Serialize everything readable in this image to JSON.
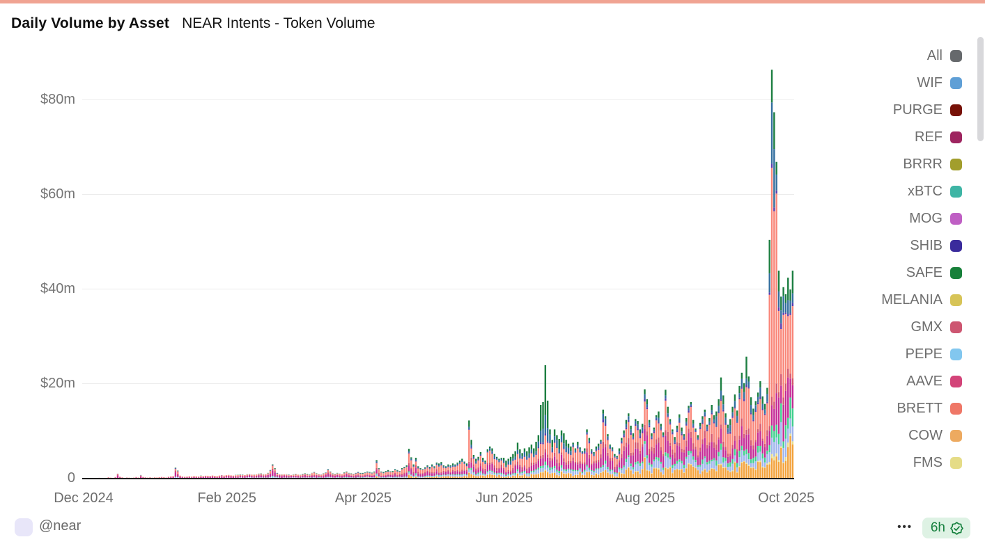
{
  "accent_color": "#f0a392",
  "header": {
    "title": "Daily Volume by Asset",
    "subtitle": "NEAR Intents - Token Volume"
  },
  "footer": {
    "handle": "@near",
    "menu_dots": "•••",
    "refresh_badge": "6h",
    "badge_bg": "#def2e4",
    "badge_green": "#15803d",
    "icons": [
      "ellipsis-menu-icon",
      "verified-seal-check-icon"
    ]
  },
  "legend": [
    {
      "label": "All",
      "color": "#66696c"
    },
    {
      "label": "WIF",
      "color": "#5f9fd6"
    },
    {
      "label": "PURGE",
      "color": "#771107"
    },
    {
      "label": "REF",
      "color": "#9e2560"
    },
    {
      "label": "BRRR",
      "color": "#a29e2c"
    },
    {
      "label": "xBTC",
      "color": "#3eb5a5"
    },
    {
      "label": "MOG",
      "color": "#bf5fc4"
    },
    {
      "label": "SHIB",
      "color": "#3a2b9c"
    },
    {
      "label": "SAFE",
      "color": "#17803a"
    },
    {
      "label": "MELANIA",
      "color": "#d7c457"
    },
    {
      "label": "GMX",
      "color": "#cd5671"
    },
    {
      "label": "PEPE",
      "color": "#82c7ef"
    },
    {
      "label": "AAVE",
      "color": "#d34479"
    },
    {
      "label": "BRETT",
      "color": "#ef7767"
    },
    {
      "label": "COW",
      "color": "#edaa60"
    },
    {
      "label": "FMS",
      "color": "#e5dc87"
    }
  ],
  "chart_data": {
    "type": "bar",
    "stacked": true,
    "title": "Daily Volume by Asset",
    "subtitle": "NEAR Intents - Token Volume",
    "unit": "USD millions per day",
    "grid": true,
    "legend_position": "right",
    "ylim": [
      0,
      88
    ],
    "y_ticks": [
      {
        "label": "$80m",
        "value": 80
      },
      {
        "label": "$60m",
        "value": 60
      },
      {
        "label": "$40m",
        "value": 40
      },
      {
        "label": "$20m",
        "value": 20
      },
      {
        "label": "0",
        "value": 0
      }
    ],
    "x_ticks": [
      {
        "label": "Dec 2024",
        "day_index": 0
      },
      {
        "label": "Feb 2025",
        "day_index": 62
      },
      {
        "label": "Apr 2025",
        "day_index": 121
      },
      {
        "label": "Jun 2025",
        "day_index": 182
      },
      {
        "label": "Aug 2025",
        "day_index": 243
      },
      {
        "label": "Oct 2025",
        "day_index": 304
      }
    ],
    "start_date": "2024-12-01",
    "months": [
      [
        "2024-12",
        31
      ],
      [
        "2025-01",
        31
      ],
      [
        "2025-02",
        28
      ],
      [
        "2025-03",
        31
      ],
      [
        "2025-04",
        30
      ],
      [
        "2025-05",
        31
      ],
      [
        "2025-06",
        30
      ],
      [
        "2025-07",
        31
      ],
      [
        "2025-08",
        31
      ],
      [
        "2025-09",
        30
      ],
      [
        "2025-10",
        31
      ]
    ],
    "series_order": [
      "COW",
      "FMS",
      "PEPE",
      "xBTC",
      "AAVE",
      "GMX",
      "BRETT",
      "SHIB",
      "WIF",
      "SAFE"
    ],
    "series_colors": {
      "COW": "#f3a23b",
      "FMS": "#e8de8d",
      "PEPE": "#9fb5ec",
      "xBTC": "#41cf8e",
      "AAVE": "#c52b96",
      "GMX": "#d5566e",
      "BRETT": "#f9877a",
      "SHIB": "#5a3cae",
      "WIF": "#336f9e",
      "SAFE": "#1d7f42"
    },
    "daily_totals_musd": [
      0.08,
      0.12,
      0.1,
      0.15,
      0.12,
      0.1,
      0.18,
      0.25,
      0.2,
      0.15,
      0.22,
      0.3,
      0.24,
      0.18,
      0.35,
      1.1,
      0.45,
      0.3,
      0.22,
      0.28,
      0.24,
      0.2,
      0.3,
      0.38,
      0.3,
      0.75,
      0.4,
      0.3,
      0.25,
      0.3,
      0.22,
      0.3,
      0.28,
      0.32,
      0.4,
      0.35,
      0.3,
      0.45,
      0.55,
      0.6,
      2.3,
      1.7,
      0.7,
      0.5,
      0.45,
      0.5,
      0.55,
      0.5,
      0.6,
      0.55,
      0.5,
      0.65,
      0.6,
      0.7,
      0.65,
      0.6,
      0.72,
      0.65,
      0.6,
      0.7,
      0.78,
      0.7,
      0.8,
      0.85,
      0.75,
      0.7,
      0.78,
      0.82,
      0.9,
      0.85,
      0.8,
      0.92,
      1.0,
      0.9,
      0.85,
      0.95,
      1.05,
      1.1,
      0.92,
      1.0,
      1.2,
      1.8,
      3.0,
      2.2,
      1.2,
      1.0,
      0.9,
      1.0,
      0.92,
      0.85,
      0.85,
      0.9,
      1.0,
      0.92,
      0.82,
      1.0,
      1.1,
      1.02,
      0.9,
      1.2,
      1.4,
      1.1,
      1.0,
      0.9,
      1.1,
      1.3,
      2.0,
      1.5,
      1.1,
      1.0,
      1.2,
      1.12,
      1.0,
      1.3,
      1.5,
      1.2,
      1.1,
      1.0,
      1.2,
      1.4,
      1.2,
      1.2,
      1.3,
      1.5,
      1.4,
      1.25,
      1.5,
      3.9,
      2.2,
      1.5,
      1.4,
      1.6,
      1.8,
      1.55,
      1.6,
      2.0,
      1.8,
      1.6,
      2.2,
      2.5,
      2.8,
      6.3,
      4.5,
      3.0,
      4.4,
      2.6,
      2.2,
      2.0,
      2.4,
      2.8,
      2.5,
      3.0,
      2.6,
      3.4,
      3.2,
      3.5,
      2.8,
      2.6,
      3.0,
      2.8,
      3.2,
      3.0,
      3.4,
      3.8,
      4.2,
      3.6,
      3.2,
      12.3,
      8.2,
      5.0,
      4.2,
      4.6,
      5.6,
      4.4,
      3.8,
      6.2,
      6.8,
      6.4,
      5.2,
      4.6,
      4.2,
      4.4,
      4.4,
      3.8,
      4.2,
      4.6,
      5.2,
      5.8,
      7.6,
      6.2,
      5.4,
      6.4,
      5.8,
      6.6,
      7.2,
      6.4,
      7.8,
      9.2,
      15.6,
      16.2,
      24.0,
      16.5,
      10.4,
      8.2,
      10.4,
      9.2,
      8.4,
      10.2,
      9.6,
      8.2,
      7.4,
      6.8,
      7.6,
      6.4,
      7.8,
      6.6,
      5.8,
      6.4,
      10.4,
      8.6,
      6.2,
      5.6,
      6.8,
      7.4,
      8.2,
      14.6,
      13.2,
      9.4,
      7.2,
      6.6,
      5.2,
      4.8,
      6.4,
      8.6,
      10.2,
      12.4,
      13.8,
      11.2,
      9.6,
      12.6,
      12.2,
      10.4,
      11.6,
      18.9,
      16.8,
      12.4,
      9.6,
      10.8,
      13.4,
      14.2,
      11.6,
      9.8,
      18.8,
      15.2,
      12.6,
      10.4,
      8.8,
      11.2,
      13.6,
      10.8,
      9.4,
      12.8,
      15.4,
      16.2,
      12.4,
      10.6,
      9.2,
      11.8,
      13.2,
      14.6,
      11.4,
      12.8,
      15.6,
      13.4,
      14.2,
      16.8,
      21.4,
      17.6,
      13.8,
      11.4,
      12.6,
      15.2,
      17.8,
      14.4,
      19.6,
      22.4,
      20.2,
      25.8,
      21.6,
      17.2,
      14.8,
      16.4,
      18.2,
      20.6,
      17.4,
      15.8,
      19.2,
      50.5,
      86.5,
      77.5,
      67.0,
      44.0,
      38.5,
      40.5,
      39.0,
      42.5,
      40.0,
      44.0
    ],
    "monthly_composition": {
      "2024-12": {
        "COW": 0.05,
        "FMS": 0.0,
        "PEPE": 0.06,
        "xBTC": 0.04,
        "AAVE": 0.4,
        "GMX": 0.15,
        "BRETT": 0.18,
        "SHIB": 0.05,
        "WIF": 0.03,
        "SAFE": 0.04
      },
      "2025-01": {
        "COW": 0.06,
        "FMS": 0.0,
        "PEPE": 0.07,
        "xBTC": 0.04,
        "AAVE": 0.34,
        "GMX": 0.14,
        "BRETT": 0.24,
        "SHIB": 0.04,
        "WIF": 0.03,
        "SAFE": 0.04
      },
      "2025-02": {
        "COW": 0.08,
        "FMS": 0.0,
        "PEPE": 0.1,
        "xBTC": 0.04,
        "AAVE": 0.36,
        "GMX": 0.12,
        "BRETT": 0.2,
        "SHIB": 0.03,
        "WIF": 0.03,
        "SAFE": 0.04
      },
      "2025-03": {
        "COW": 0.1,
        "FMS": 0.0,
        "PEPE": 0.08,
        "xBTC": 0.05,
        "AAVE": 0.3,
        "GMX": 0.12,
        "BRETT": 0.23,
        "SHIB": 0.03,
        "WIF": 0.04,
        "SAFE": 0.05
      },
      "2025-04": {
        "COW": 0.1,
        "FMS": 0.01,
        "PEPE": 0.07,
        "xBTC": 0.05,
        "AAVE": 0.22,
        "GMX": 0.1,
        "BRETT": 0.3,
        "SHIB": 0.02,
        "WIF": 0.06,
        "SAFE": 0.07
      },
      "2025-05": {
        "COW": 0.12,
        "FMS": 0.01,
        "PEPE": 0.08,
        "xBTC": 0.04,
        "AAVE": 0.18,
        "GMX": 0.08,
        "BRETT": 0.32,
        "SHIB": 0.02,
        "WIF": 0.07,
        "SAFE": 0.08
      },
      "2025-06": {
        "COW": 0.1,
        "FMS": 0.01,
        "PEPE": 0.07,
        "xBTC": 0.04,
        "AAVE": 0.15,
        "GMX": 0.07,
        "BRETT": 0.24,
        "SHIB": 0.02,
        "WIF": 0.12,
        "SAFE": 0.18
      },
      "2025-07": {
        "COW": 0.14,
        "FMS": 0.01,
        "PEPE": 0.1,
        "xBTC": 0.04,
        "AAVE": 0.22,
        "GMX": 0.08,
        "BRETT": 0.26,
        "SHIB": 0.03,
        "WIF": 0.06,
        "SAFE": 0.06
      },
      "2025-08": {
        "COW": 0.16,
        "FMS": 0.01,
        "PEPE": 0.12,
        "xBTC": 0.04,
        "AAVE": 0.2,
        "GMX": 0.08,
        "BRETT": 0.28,
        "SHIB": 0.02,
        "WIF": 0.04,
        "SAFE": 0.05
      },
      "2025-09": {
        "COW": 0.15,
        "FMS": 0.01,
        "PEPE": 0.08,
        "xBTC": 0.06,
        "AAVE": 0.14,
        "GMX": 0.05,
        "BRETT": 0.33,
        "SHIB": 0.02,
        "WIF": 0.08,
        "SAFE": 0.08
      },
      "2025-10": {
        "COW": 0.16,
        "FMS": 0.02,
        "PEPE": 0.09,
        "xBTC": 0.08,
        "AAVE": 0.16,
        "GMX": 0.04,
        "BRETT": 0.32,
        "SHIB": 0.01,
        "WIF": 0.05,
        "SAFE": 0.07
      }
    },
    "composition_overrides": {
      "167": {
        "COW": 0.1,
        "FMS": 0.01,
        "PEPE": 0.05,
        "xBTC": 0.02,
        "AAVE": 0.08,
        "GMX": 0.03,
        "BRETT": 0.55,
        "SHIB": 0.01,
        "WIF": 0.04,
        "SAFE": 0.11
      },
      "198": {
        "COW": 0.08,
        "FMS": 0.01,
        "PEPE": 0.05,
        "xBTC": 0.03,
        "AAVE": 0.1,
        "GMX": 0.04,
        "BRETT": 0.16,
        "SHIB": 0.02,
        "WIF": 0.16,
        "SAFE": 0.35
      },
      "199": {
        "COW": 0.08,
        "FMS": 0.01,
        "PEPE": 0.05,
        "xBTC": 0.03,
        "AAVE": 0.1,
        "GMX": 0.04,
        "BRETT": 0.14,
        "SHIB": 0.02,
        "WIF": 0.18,
        "SAFE": 0.35
      },
      "200": {
        "COW": 0.07,
        "FMS": 0.01,
        "PEPE": 0.04,
        "xBTC": 0.03,
        "AAVE": 0.08,
        "GMX": 0.03,
        "BRETT": 0.12,
        "SHIB": 0.02,
        "WIF": 0.16,
        "SAFE": 0.44
      },
      "201": {
        "COW": 0.08,
        "FMS": 0.01,
        "PEPE": 0.05,
        "xBTC": 0.03,
        "AAVE": 0.1,
        "GMX": 0.04,
        "BRETT": 0.15,
        "SHIB": 0.02,
        "WIF": 0.17,
        "SAFE": 0.35
      },
      "287": {
        "COW": 0.12,
        "FMS": 0.01,
        "PEPE": 0.07,
        "xBTC": 0.04,
        "AAVE": 0.12,
        "GMX": 0.04,
        "BRETT": 0.35,
        "SHIB": 0.02,
        "WIF": 0.05,
        "SAFE": 0.18
      },
      "297": {
        "COW": 0.06,
        "FMS": 0.01,
        "PEPE": 0.04,
        "xBTC": 0.03,
        "AAVE": 0.06,
        "GMX": 0.02,
        "BRETT": 0.55,
        "SHIB": 0.01,
        "WIF": 0.08,
        "SAFE": 0.14
      },
      "298": {
        "COW": 0.05,
        "FMS": 0.01,
        "PEPE": 0.04,
        "xBTC": 0.03,
        "AAVE": 0.05,
        "GMX": 0.02,
        "BRETT": 0.56,
        "SHIB": 0.01,
        "WIF": 0.15,
        "SAFE": 0.08
      },
      "299": {
        "COW": 0.05,
        "FMS": 0.01,
        "PEPE": 0.04,
        "xBTC": 0.03,
        "AAVE": 0.06,
        "GMX": 0.02,
        "BRETT": 0.52,
        "SHIB": 0.01,
        "WIF": 0.16,
        "SAFE": 0.1
      },
      "300": {
        "COW": 0.07,
        "FMS": 0.01,
        "PEPE": 0.05,
        "xBTC": 0.04,
        "AAVE": 0.1,
        "GMX": 0.03,
        "BRETT": 0.6,
        "SHIB": 0.01,
        "WIF": 0.05,
        "SAFE": 0.04
      }
    }
  }
}
